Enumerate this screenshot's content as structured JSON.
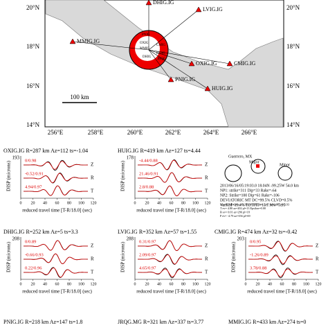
{
  "map": {
    "lat_labels": [
      "20°N",
      "18°N",
      "16°N",
      "14°N"
    ],
    "lon_labels": [
      "256°E",
      "258°E",
      "260°E",
      "262°E",
      "264°E",
      "266°E"
    ],
    "stations": [
      "DHIG.IG",
      "LVIG.IG",
      "MMIG.IG",
      "OXIG.IG",
      "CMIG.IG",
      "PNIG.IG",
      "HUIG.IG"
    ],
    "inner_labels": [
      "PNIG",
      "OXIG",
      "MMIG",
      "CMIG",
      "HUIG",
      "JRQG",
      "DHIG"
    ],
    "scale": "100 km"
  },
  "panels": [
    {
      "title": "OXIG.IG R=287 km Az=112 ts=-1.04",
      "ymax": "193",
      "fits": [
        "0/0.98",
        "-0.52/0.91",
        "4.94/0.97"
      ]
    },
    {
      "title": "HUIG.IG R=419 km Az=127 ts=4.44",
      "ymax": "178",
      "fits": [
        "-4.44/0.88",
        "21.46/0.91",
        "2.8/0.88"
      ]
    },
    {
      "title": "DHIG.IG R=252 km Az=5 ts=3.3",
      "ymax": "208",
      "fits": [
        "0/0.89",
        "-0.66/0.93",
        "0.22/0.96"
      ]
    },
    {
      "title": "LVIG.IG R=352 km Az=57 ts=1.55",
      "ymax": "288",
      "fits": [
        "0.31/0.97",
        "2.09/0.97",
        "4.65/0.97"
      ]
    },
    {
      "title": "CMIG.IG R=474 km Az=32 ts=-0.42",
      "ymax": "203",
      "fits": [
        "0/0.95",
        "-1.26/0.89",
        "3.78/0.88"
      ]
    }
  ],
  "bottom_titles": [
    "PNIG.IG R=218 km Az=147 ts=1.8",
    "JRQG.MG R=321 km Az=337 ts=3.77",
    "MMIG.IG R=433 km Az=274 ts=0"
  ],
  "components": [
    "Z",
    "R",
    "T"
  ],
  "xticks": [
    0,
    20,
    40,
    60,
    80,
    100,
    120
  ],
  "ylabel": "DISP (microns)",
  "xlabel": "reduced travel time [T-R/18.0] (sec)",
  "mechanism": {
    "region": "Guerrero, MX",
    "major": "Major",
    "minor": "Minor",
    "lines": [
      "2013/06/16/05:19:03.0 18.04N -99.25W 54.0 km",
      "NP1: strike=311 Dip=33 Rake=-64",
      "NP2: Strike=100 Dip=61 Rake=-106",
      "DEVIATORIC MT DC=99.5% CLVD=0.5%",
      "VarRed=19.4% TOTFIT=13.1 Mw=5.95",
      "Mo=4.79E+24 xx=3.38 yy=1.81 zz=-2.47 yz=0.35 xy=3.93",
      "T ev= 4.80 az=202 pl=13 Epsilon=0.00",
      "B ev= 0.01 az=296 pl=18",
      "P ev= -4.79 az=356 pl=69"
    ]
  }
}
